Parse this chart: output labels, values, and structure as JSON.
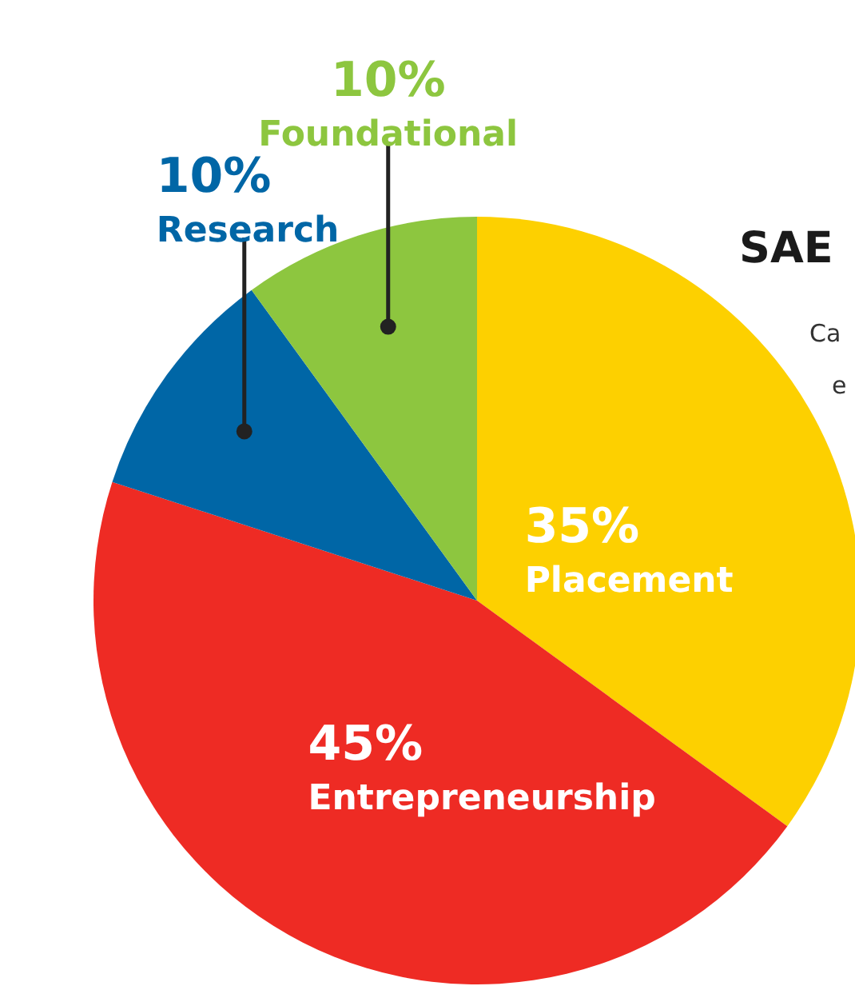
{
  "chart_data": {
    "type": "pie",
    "title": "SAE",
    "categories": [
      "Placement",
      "Entrepreneurship",
      "Research",
      "Foundational"
    ],
    "values": [
      35,
      45,
      10,
      10
    ],
    "value_labels": [
      "35%",
      "45%",
      "10%",
      "10%"
    ],
    "colors": [
      "#fdd000",
      "#ee2b24",
      "#0066a6",
      "#8dc63f"
    ],
    "annotations": [
      "Ca",
      "e"
    ]
  }
}
